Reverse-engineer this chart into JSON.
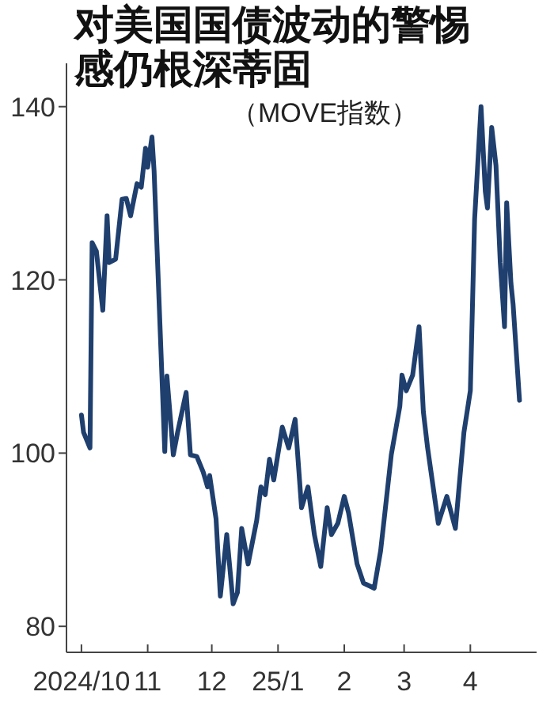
{
  "chart_data": {
    "type": "line",
    "title": "对美国国债波动的警惕感仍根深蒂固",
    "subtitle": "（MOVE指数）",
    "x": [
      "2024-10-01",
      "2024-10-02",
      "2024-10-05",
      "2024-10-06",
      "2024-10-08",
      "2024-10-11",
      "2024-10-13",
      "2024-10-14",
      "2024-10-17",
      "2024-10-20",
      "2024-10-22",
      "2024-10-24",
      "2024-10-27",
      "2024-10-29",
      "2024-10-31",
      "2024-11-01",
      "2024-11-03",
      "2024-11-04",
      "2024-11-09",
      "2024-11-10",
      "2024-11-13",
      "2024-11-15",
      "2024-11-19",
      "2024-11-21",
      "2024-11-24",
      "2024-11-27",
      "2024-11-29",
      "2024-11-30",
      "2024-12-03",
      "2024-12-05",
      "2024-12-08",
      "2024-12-11",
      "2024-12-13",
      "2024-12-15",
      "2024-12-18",
      "2024-12-22",
      "2024-12-24",
      "2024-12-26",
      "2024-12-28",
      "2024-12-30",
      "2025-01-03",
      "2025-01-06",
      "2025-01-09",
      "2025-01-12",
      "2025-01-15",
      "2025-01-18",
      "2025-01-21",
      "2025-01-24",
      "2025-01-26",
      "2025-01-29",
      "2025-02-01",
      "2025-02-03",
      "2025-02-07",
      "2025-02-10",
      "2025-02-15",
      "2025-02-18",
      "2025-02-20",
      "2025-02-23",
      "2025-02-27",
      "2025-02-28",
      "2025-03-02",
      "2025-03-05",
      "2025-03-08",
      "2025-03-10",
      "2025-03-12",
      "2025-03-17",
      "2025-03-21",
      "2025-03-25",
      "2025-03-29",
      "2025-04-01",
      "2025-04-03",
      "2025-04-06",
      "2025-04-08",
      "2025-04-09",
      "2025-04-11",
      "2025-04-13",
      "2025-04-15",
      "2025-04-17",
      "2025-04-18",
      "2025-04-20",
      "2025-04-21",
      "2025-04-24"
    ],
    "series": [
      {
        "color": "#1f3f6e",
        "values": [
          104.4,
          102.4,
          100.6,
          124.3,
          123.3,
          116.5,
          127.4,
          122,
          122.4,
          129.3,
          129.4,
          127.4,
          131.1,
          130.7,
          135.2,
          133,
          136.5,
          132.6,
          100.2,
          108.9,
          99.8,
          102.4,
          107,
          99.8,
          99.6,
          97.8,
          96.1,
          97.4,
          92.4,
          83.5,
          90.6,
          82.6,
          83.9,
          91.3,
          87.2,
          92.2,
          96.1,
          95.2,
          99.3,
          96.9,
          103,
          100.6,
          103.9,
          93.7,
          96.1,
          90.6,
          86.9,
          93.7,
          90.6,
          91.9,
          95,
          93.1,
          87.2,
          85,
          84.4,
          88.7,
          93.1,
          99.8,
          105.4,
          109,
          107.2,
          109,
          114.6,
          104.8,
          100.6,
          91.9,
          95,
          91.3,
          102.4,
          107.2,
          127,
          140,
          130.2,
          128.3,
          137.6,
          133.2,
          122,
          114.6,
          128.9,
          119.6,
          117.2,
          106.1
        ]
      }
    ],
    "xlim": [
      "2024-09-24",
      "2025-05-02"
    ],
    "xticks": [
      {
        "value": "2024-10-01",
        "label": "2024/10"
      },
      {
        "value": "2024-11-01",
        "label": "11"
      },
      {
        "value": "2024-12-01",
        "label": "12"
      },
      {
        "value": "2025-01-01",
        "label": "25/1"
      },
      {
        "value": "2025-02-01",
        "label": "2"
      },
      {
        "value": "2025-03-01",
        "label": "3"
      },
      {
        "value": "2025-04-01",
        "label": "4"
      }
    ],
    "ylim": [
      77,
      145
    ],
    "yticks": [
      80,
      100,
      120,
      140
    ],
    "grid": false,
    "marker": "none",
    "line_style": "solid"
  }
}
